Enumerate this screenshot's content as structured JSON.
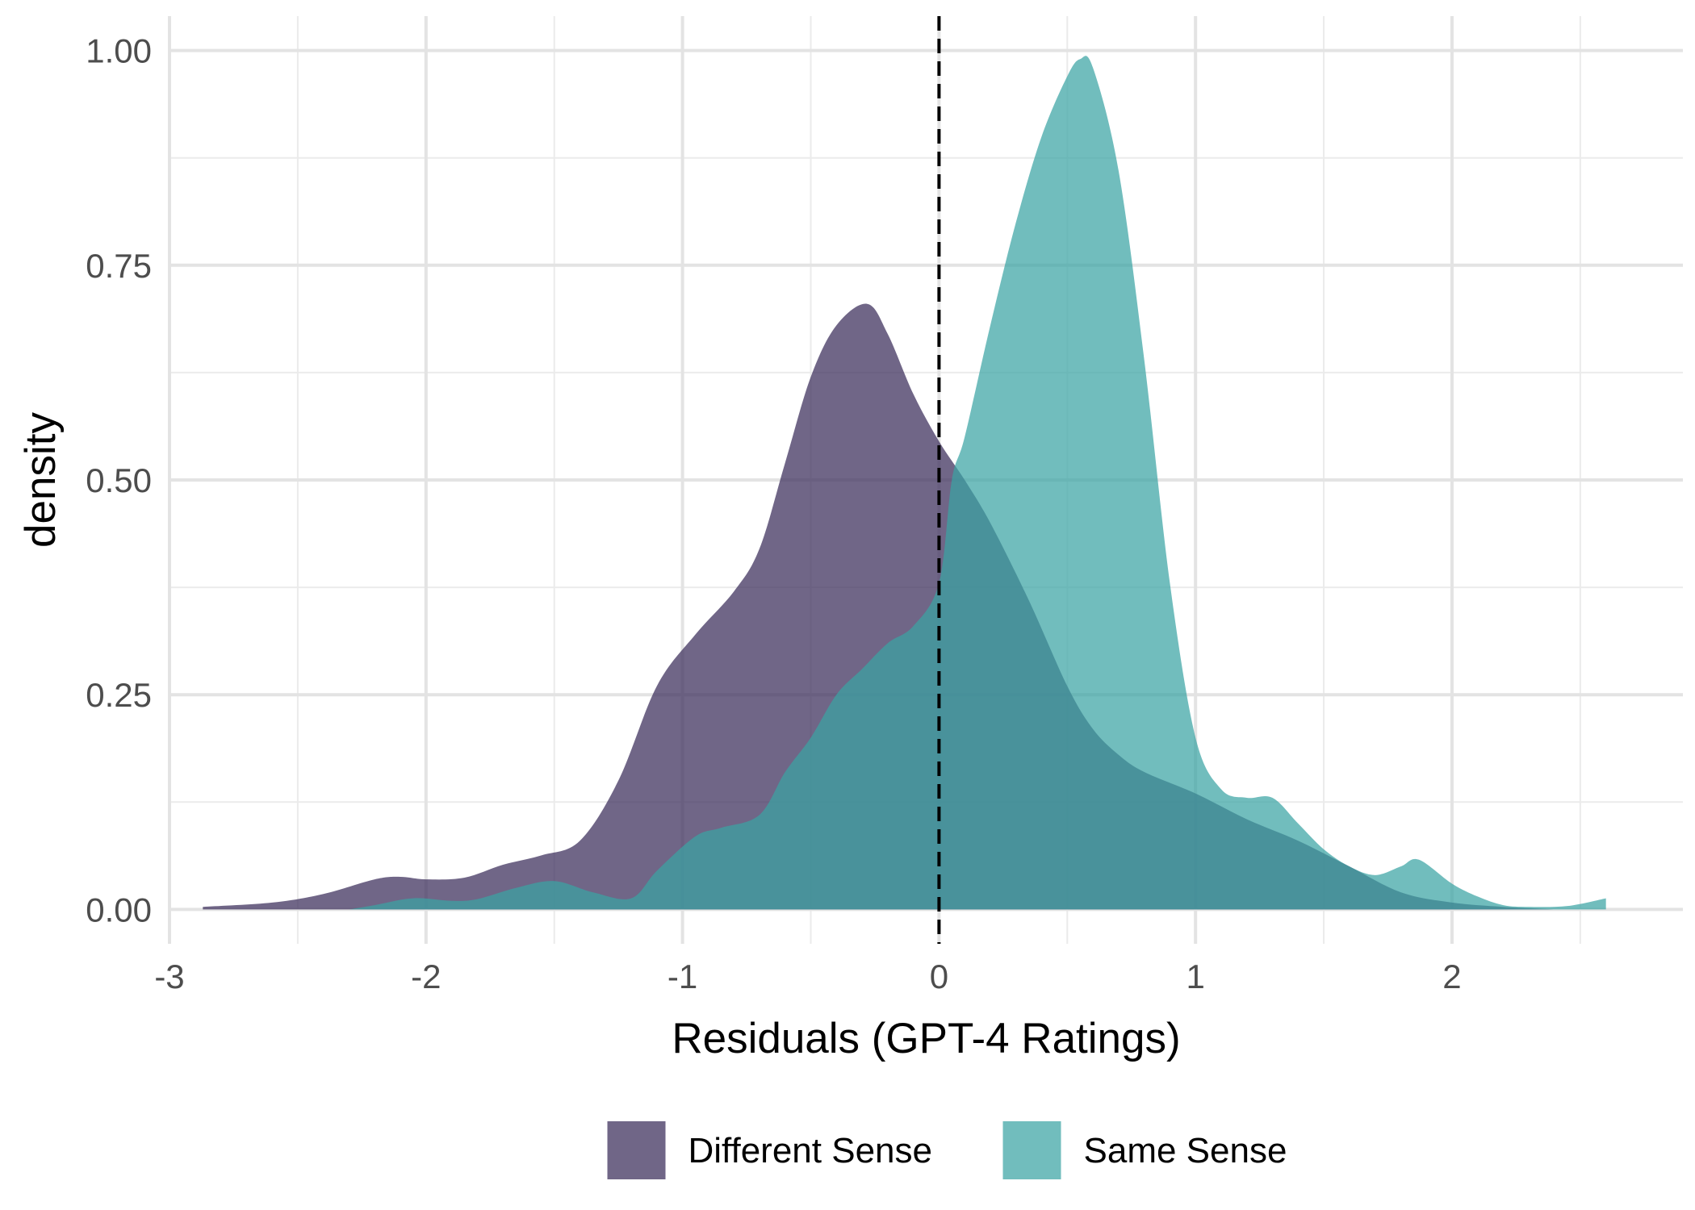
{
  "chart_data": {
    "type": "area",
    "title": "",
    "xlabel": "Residuals (GPT-4 Ratings)",
    "ylabel": "density",
    "xlim": [
      -3.0,
      2.9
    ],
    "ylim": [
      -0.04,
      1.04
    ],
    "x_ticks": [
      -3,
      -2,
      -1,
      0,
      1,
      2
    ],
    "x_tick_labels": [
      "-3",
      "-2",
      "-1",
      "0",
      "1",
      "2"
    ],
    "y_ticks": [
      0.0,
      0.25,
      0.5,
      0.75,
      1.0
    ],
    "y_tick_labels": [
      "0.00",
      "0.25",
      "0.50",
      "0.75",
      "1.00"
    ],
    "grid": true,
    "reference_line": {
      "x": 0,
      "style": "dashed"
    },
    "legend": {
      "position": "bottom"
    },
    "series": [
      {
        "name": "Different Sense",
        "color": "#3b2d5a",
        "opacity": 0.73,
        "x": [
          -2.87,
          -2.6,
          -2.4,
          -2.2,
          -2.1,
          -2.0,
          -1.85,
          -1.7,
          -1.55,
          -1.4,
          -1.25,
          -1.1,
          -0.95,
          -0.8,
          -0.7,
          -0.6,
          -0.5,
          -0.4,
          -0.28,
          -0.2,
          -0.1,
          0.0,
          0.1,
          0.2,
          0.35,
          0.5,
          0.6,
          0.7,
          0.8,
          1.0,
          1.2,
          1.4,
          1.6,
          1.8,
          2.0,
          2.2,
          2.4
        ],
        "y": [
          0.003,
          0.008,
          0.018,
          0.035,
          0.038,
          0.035,
          0.037,
          0.052,
          0.063,
          0.08,
          0.15,
          0.26,
          0.32,
          0.37,
          0.42,
          0.52,
          0.62,
          0.68,
          0.705,
          0.67,
          0.6,
          0.545,
          0.5,
          0.45,
          0.36,
          0.26,
          0.21,
          0.18,
          0.16,
          0.135,
          0.105,
          0.08,
          0.05,
          0.02,
          0.008,
          0.003,
          0.0
        ]
      },
      {
        "name": "Same Sense",
        "color": "#3aa4a4",
        "opacity": 0.72,
        "x": [
          -2.3,
          -2.2,
          -2.05,
          -1.9,
          -1.8,
          -1.65,
          -1.5,
          -1.35,
          -1.2,
          -1.1,
          -0.95,
          -0.85,
          -0.7,
          -0.6,
          -0.5,
          -0.4,
          -0.3,
          -0.2,
          -0.1,
          0.0,
          0.05,
          0.1,
          0.2,
          0.3,
          0.4,
          0.5,
          0.55,
          0.6,
          0.7,
          0.8,
          0.9,
          1.0,
          1.1,
          1.2,
          1.3,
          1.4,
          1.5,
          1.6,
          1.7,
          1.8,
          1.87,
          2.0,
          2.1,
          2.2,
          2.3,
          2.45,
          2.6
        ],
        "y": [
          0.0,
          0.005,
          0.013,
          0.01,
          0.012,
          0.025,
          0.033,
          0.02,
          0.013,
          0.045,
          0.085,
          0.095,
          0.11,
          0.16,
          0.2,
          0.25,
          0.28,
          0.31,
          0.33,
          0.38,
          0.5,
          0.55,
          0.68,
          0.8,
          0.9,
          0.97,
          0.99,
          0.98,
          0.86,
          0.64,
          0.38,
          0.2,
          0.14,
          0.13,
          0.13,
          0.1,
          0.07,
          0.05,
          0.04,
          0.05,
          0.058,
          0.03,
          0.015,
          0.005,
          0.003,
          0.004,
          0.013
        ]
      }
    ]
  }
}
